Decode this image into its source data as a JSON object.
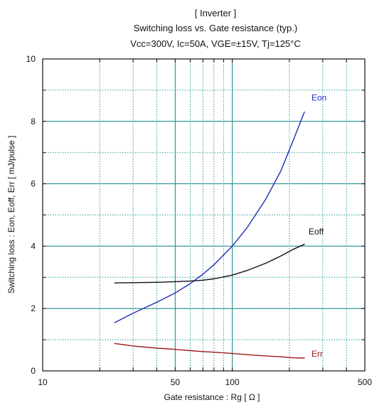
{
  "chart_data": {
    "type": "line",
    "title_lines": [
      "[ Inverter ]",
      "Switching loss  vs.  Gate resistance (typ.)",
      "Vcc=300V, Ic=50A, VGE=±15V, Tj=125°C"
    ],
    "xlabel": "Gate resistance  :  Rg  [    Ω ]",
    "ylabel": "Switching loss  :  Eon, Eoff, Err  [  mJ/pulse ]",
    "x_scale": "log",
    "xlim": [
      10,
      500
    ],
    "ylim": [
      0,
      10
    ],
    "x_tick_labels": [
      {
        "value": 10,
        "label": "10"
      },
      {
        "value": 50,
        "label": "50"
      },
      {
        "value": 100,
        "label": "100"
      },
      {
        "value": 500,
        "label": "500"
      }
    ],
    "y_tick_labels": [
      {
        "value": 0,
        "label": "0"
      },
      {
        "value": 2,
        "label": "2"
      },
      {
        "value": 4,
        "label": "4"
      },
      {
        "value": 6,
        "label": "6"
      },
      {
        "value": 8,
        "label": "8"
      },
      {
        "value": 10,
        "label": "10"
      }
    ],
    "x_gridlines": [
      20,
      30,
      40,
      50,
      60,
      70,
      80,
      90,
      100,
      200,
      300,
      400
    ],
    "y_gridlines": [
      1,
      2,
      3,
      4,
      5,
      6,
      7,
      8,
      9
    ],
    "grid": true,
    "series": [
      {
        "name": "Eon",
        "color": "#1f2fb5",
        "x": [
          24,
          30,
          40,
          50,
          60,
          70,
          80,
          100,
          120,
          150,
          180,
          210,
          240
        ],
        "y": [
          1.55,
          1.85,
          2.2,
          2.5,
          2.8,
          3.1,
          3.4,
          4.0,
          4.6,
          5.5,
          6.4,
          7.4,
          8.3
        ]
      },
      {
        "name": "Eoff",
        "color": "#111111",
        "x": [
          24,
          30,
          40,
          50,
          60,
          70,
          80,
          100,
          120,
          150,
          180,
          210,
          240
        ],
        "y": [
          2.82,
          2.83,
          2.84,
          2.86,
          2.88,
          2.91,
          2.95,
          3.07,
          3.22,
          3.45,
          3.68,
          3.9,
          4.06
        ]
      },
      {
        "name": "Err",
        "color": "#a01818",
        "x": [
          24,
          30,
          40,
          50,
          60,
          70,
          80,
          100,
          120,
          150,
          180,
          210,
          240
        ],
        "y": [
          0.88,
          0.8,
          0.73,
          0.69,
          0.65,
          0.62,
          0.6,
          0.56,
          0.52,
          0.48,
          0.45,
          0.42,
          0.41
        ]
      }
    ]
  }
}
